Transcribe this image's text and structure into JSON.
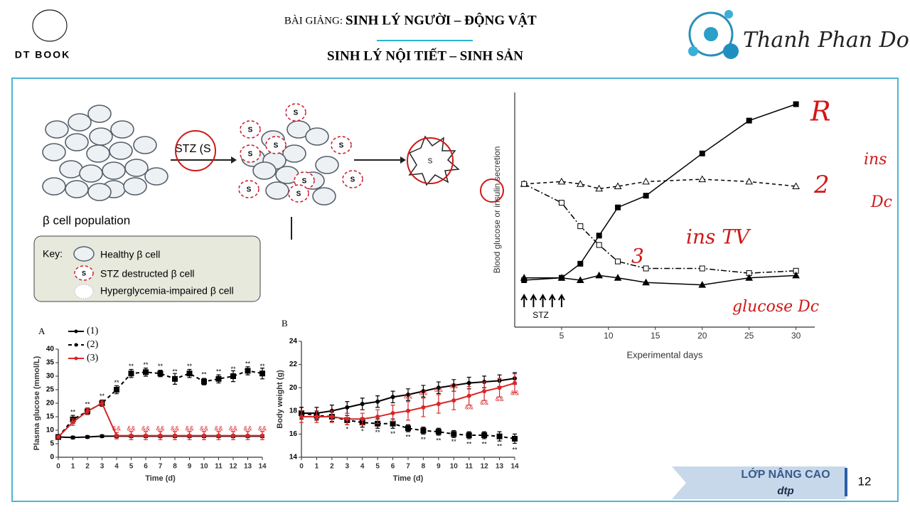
{
  "header": {
    "logo": "DT BOOK",
    "prefix": "BÀI GIẢNG:",
    "title": "SINH LÝ NGƯỜI – ĐỘNG VẬT",
    "subtitle": "SINH LÝ NỘI TIẾT – SINH SẢN",
    "signature": "Thanh Phan Do"
  },
  "footer": {
    "label": "LỚP NÂNG CAO",
    "sub": "dtp",
    "page": "12"
  },
  "diagram": {
    "arrow_label": "STZ (S",
    "population": "β cell population",
    "s_label": "S",
    "key": "Key:",
    "key_items": [
      "Healthy β cell",
      "STZ destructed β cell",
      "Hyperglycemia-impaired β cell"
    ]
  },
  "handwritten": [
    "R",
    "2",
    "ins",
    "Dc",
    "3",
    "ins TV",
    "glucose Dc"
  ],
  "chart_data": [
    {
      "type": "line",
      "panel": "A",
      "xlabel": "Time (d)",
      "ylabel": "Plasma glucose (mmol/L)",
      "x": [
        0,
        1,
        2,
        3,
        4,
        5,
        6,
        7,
        8,
        9,
        10,
        11,
        12,
        13,
        14
      ],
      "xlim": [
        0,
        14
      ],
      "xticks": [
        0,
        1,
        2,
        3,
        4,
        5,
        6,
        7,
        8,
        9,
        10,
        11,
        12,
        13,
        14
      ],
      "ylim": [
        0,
        40
      ],
      "yticks": [
        0,
        5,
        10,
        15,
        20,
        25,
        30,
        35,
        40
      ],
      "series": [
        {
          "name": "(1)",
          "color": "#000000",
          "line_style": "solid",
          "marker": "circle",
          "values": [
            7.5,
            7.3,
            7.5,
            7.8,
            7.8,
            7.8,
            7.8,
            7.8,
            7.8,
            7.8,
            7.8,
            7.8,
            7.8,
            7.8,
            7.8
          ],
          "errors": [
            0.5,
            0.5,
            0.5,
            0.5,
            0.5,
            0.5,
            0.5,
            0.5,
            0.5,
            0.5,
            0.5,
            0.5,
            0.5,
            0.5,
            0.5
          ]
        },
        {
          "name": "(2)",
          "color": "#000000",
          "line_style": "dashed",
          "marker": "square",
          "values": [
            7.5,
            14,
            17,
            20,
            25,
            31,
            31.5,
            31,
            29,
            31,
            28,
            29,
            30,
            32,
            31
          ],
          "errors": [
            0.5,
            1.5,
            1.2,
            1.2,
            1.5,
            1.5,
            1.5,
            1.2,
            2,
            1.5,
            1.2,
            1.5,
            2,
            1.5,
            2
          ]
        },
        {
          "name": "(3)",
          "color": "#d62728",
          "line_style": "solid",
          "marker": "circle",
          "values": [
            7.5,
            13,
            17,
            20,
            8,
            8,
            8,
            8,
            8,
            8,
            8,
            8,
            8,
            8,
            8
          ],
          "errors": [
            0.5,
            1.2,
            1,
            1,
            1.2,
            1.5,
            1.5,
            1.5,
            1.5,
            1.5,
            1.5,
            1.5,
            1.5,
            1.5,
            1.5
          ]
        }
      ],
      "annotations": [
        {
          "text": "**",
          "x": 1,
          "y": 16.5,
          "color": "#000000"
        },
        {
          "text": "**",
          "x": 2,
          "y": 19.5,
          "color": "#000000"
        },
        {
          "text": "**",
          "x": 3,
          "y": 22.5,
          "color": "#000000"
        },
        {
          "text": "**",
          "x": 4,
          "y": 27.5,
          "color": "#000000"
        },
        {
          "text": "**",
          "x": 5,
          "y": 33.5,
          "color": "#000000"
        },
        {
          "text": "**",
          "x": 6,
          "y": 34,
          "color": "#000000"
        },
        {
          "text": "**",
          "x": 7,
          "y": 33.5,
          "color": "#000000"
        },
        {
          "text": "**",
          "x": 8,
          "y": 31.5,
          "color": "#000000"
        },
        {
          "text": "**",
          "x": 9,
          "y": 33.5,
          "color": "#000000"
        },
        {
          "text": "**",
          "x": 10,
          "y": 30.5,
          "color": "#000000"
        },
        {
          "text": "**",
          "x": 11,
          "y": 31.5,
          "color": "#000000"
        },
        {
          "text": "**",
          "x": 12,
          "y": 32.5,
          "color": "#000000"
        },
        {
          "text": "**",
          "x": 13,
          "y": 34.5,
          "color": "#000000"
        },
        {
          "text": "**",
          "x": 14,
          "y": 33.5,
          "color": "#000000"
        },
        {
          "text": "&&",
          "x": 4,
          "y": 10.5,
          "color": "#d62728"
        },
        {
          "text": "&&",
          "x": 5,
          "y": 10.5,
          "color": "#d62728"
        },
        {
          "text": "&&",
          "x": 6,
          "y": 10.5,
          "color": "#d62728"
        },
        {
          "text": "&&",
          "x": 7,
          "y": 10.5,
          "color": "#d62728"
        },
        {
          "text": "&&",
          "x": 8,
          "y": 10.5,
          "color": "#d62728"
        },
        {
          "text": "&&",
          "x": 9,
          "y": 10.5,
          "color": "#d62728"
        },
        {
          "text": "&&",
          "x": 10,
          "y": 10.5,
          "color": "#d62728"
        },
        {
          "text": "&&",
          "x": 11,
          "y": 10.5,
          "color": "#d62728"
        },
        {
          "text": "&&",
          "x": 12,
          "y": 10.5,
          "color": "#d62728"
        },
        {
          "text": "&&",
          "x": 13,
          "y": 10.5,
          "color": "#d62728"
        },
        {
          "text": "&&",
          "x": 14,
          "y": 10.5,
          "color": "#d62728"
        }
      ]
    },
    {
      "type": "line",
      "panel": "B",
      "xlabel": "Time (d)",
      "ylabel": "Body weight (g)",
      "x": [
        0,
        1,
        2,
        3,
        4,
        5,
        6,
        7,
        8,
        9,
        10,
        11,
        12,
        13,
        14
      ],
      "xlim": [
        0,
        14
      ],
      "xticks": [
        0,
        1,
        2,
        3,
        4,
        5,
        6,
        7,
        8,
        9,
        10,
        11,
        12,
        13,
        14
      ],
      "ylim": [
        14,
        24
      ],
      "yticks": [
        14,
        16,
        18,
        20,
        22,
        24
      ],
      "series": [
        {
          "color": "#000000",
          "line_style": "solid",
          "marker": "circle",
          "values": [
            17.8,
            17.8,
            18,
            18.3,
            18.6,
            18.8,
            19.2,
            19.4,
            19.7,
            20,
            20.2,
            20.4,
            20.5,
            20.6,
            20.8
          ],
          "errors": [
            0.5,
            0.5,
            0.5,
            0.5,
            0.5,
            0.5,
            0.5,
            0.5,
            0.5,
            0.5,
            0.5,
            0.5,
            0.5,
            0.5,
            0.5
          ]
        },
        {
          "color": "#000000",
          "line_style": "dashed",
          "marker": "square",
          "values": [
            17.8,
            17.6,
            17.5,
            17.2,
            17,
            16.9,
            16.9,
            16.5,
            16.3,
            16.2,
            16,
            15.9,
            15.9,
            15.8,
            15.6
          ],
          "errors": [
            0.5,
            0.4,
            0.4,
            0.4,
            0.4,
            0.4,
            0.4,
            0.3,
            0.3,
            0.3,
            0.3,
            0.3,
            0.3,
            0.4,
            0.4
          ]
        },
        {
          "color": "#d62728",
          "line_style": "solid",
          "marker": "circle",
          "values": [
            17.5,
            17.5,
            17.5,
            17.3,
            17.3,
            17.5,
            17.8,
            18,
            18.3,
            18.6,
            18.9,
            19.3,
            19.7,
            20,
            20.4
          ],
          "errors": [
            0.5,
            0.5,
            0.5,
            0.5,
            0.5,
            0.6,
            0.7,
            0.8,
            0.8,
            0.8,
            0.8,
            0.8,
            0.8,
            0.8,
            0.8
          ]
        }
      ],
      "annotations": [
        {
          "text": "*",
          "x": 3,
          "y": 16.4,
          "color": "#000000"
        },
        {
          "text": "*",
          "x": 4,
          "y": 16.2,
          "color": "#000000"
        },
        {
          "text": "**",
          "x": 5,
          "y": 16.1,
          "color": "#000000"
        },
        {
          "text": "**",
          "x": 6,
          "y": 16.0,
          "color": "#000000"
        },
        {
          "text": "**",
          "x": 7,
          "y": 15.7,
          "color": "#000000"
        },
        {
          "text": "**",
          "x": 8,
          "y": 15.5,
          "color": "#000000"
        },
        {
          "text": "**",
          "x": 9,
          "y": 15.4,
          "color": "#000000"
        },
        {
          "text": "**",
          "x": 10,
          "y": 15.3,
          "color": "#000000"
        },
        {
          "text": "**",
          "x": 11,
          "y": 15.1,
          "color": "#000000"
        },
        {
          "text": "**",
          "x": 12,
          "y": 15.1,
          "color": "#000000"
        },
        {
          "text": "**",
          "x": 13,
          "y": 14.9,
          "color": "#000000"
        },
        {
          "text": "**",
          "x": 14,
          "y": 14.6,
          "color": "#000000"
        },
        {
          "text": "&&",
          "x": 7,
          "y": 19.2,
          "color": "#d62728"
        },
        {
          "text": "&&",
          "x": 8,
          "y": 19.5,
          "color": "#d62728"
        },
        {
          "text": "&&",
          "x": 9,
          "y": 19.8,
          "color": "#d62728"
        },
        {
          "text": "&&",
          "x": 10,
          "y": 20.1,
          "color": "#d62728"
        },
        {
          "text": "&&",
          "x": 11,
          "y": 18.3,
          "color": "#d62728"
        },
        {
          "text": "&&",
          "x": 12,
          "y": 18.7,
          "color": "#d62728"
        },
        {
          "text": "&&",
          "x": 13,
          "y": 19.0,
          "color": "#d62728"
        },
        {
          "text": "&&",
          "x": 14,
          "y": 19.5,
          "color": "#d62728"
        }
      ]
    },
    {
      "type": "line",
      "xlabel": "Experimental days",
      "ylabel": "Blood glucose or insulin secretion",
      "x": [
        1,
        5,
        7,
        9,
        11,
        14,
        20,
        25,
        30
      ],
      "xlim": [
        0,
        32
      ],
      "xticks": [
        5,
        10,
        15,
        20,
        25,
        30
      ],
      "ylim": [
        0,
        10
      ],
      "arrow_label": "STZ",
      "arrow_x": [
        1,
        2,
        3,
        4,
        5
      ],
      "series": [
        {
          "color": "#000000",
          "line_style": "solid",
          "marker": "square",
          "values": [
            2.0,
            2.1,
            2.7,
            3.9,
            5.1,
            5.6,
            7.4,
            8.8,
            9.5
          ]
        },
        {
          "color": "#000000",
          "line_style": "dashed",
          "marker": "triangle-open",
          "values": [
            6.1,
            6.2,
            6.1,
            5.9,
            6.0,
            6.2,
            6.3,
            6.2,
            6.0
          ]
        },
        {
          "color": "#000000",
          "line_style": "dashdot",
          "marker": "square-open",
          "values": [
            6.1,
            5.3,
            4.3,
            3.5,
            2.8,
            2.5,
            2.5,
            2.3,
            2.4
          ]
        },
        {
          "color": "#000000",
          "line_style": "solid",
          "marker": "triangle",
          "values": [
            2.1,
            2.1,
            2.0,
            2.2,
            2.1,
            1.9,
            1.8,
            2.1,
            2.2
          ]
        }
      ]
    }
  ]
}
